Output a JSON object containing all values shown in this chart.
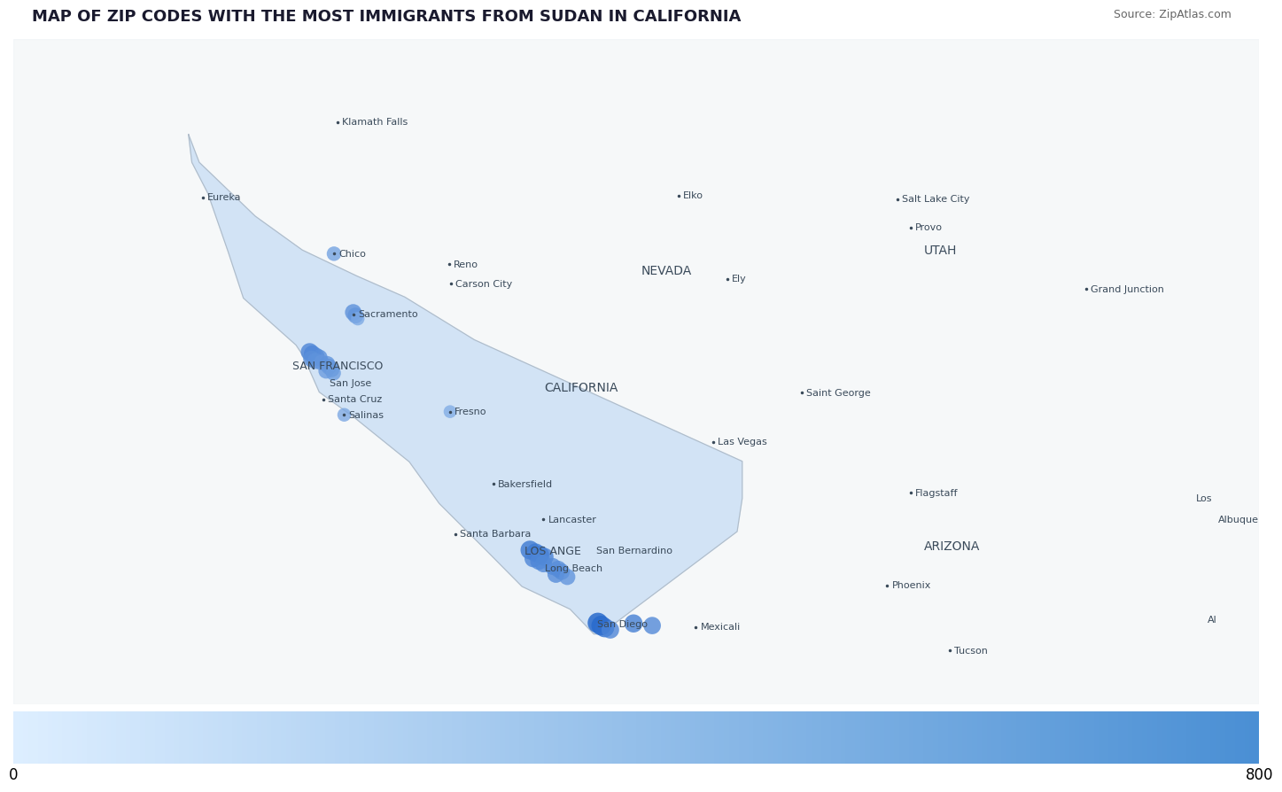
{
  "title": "MAP OF ZIP CODES WITH THE MOST IMMIGRANTS FROM SUDAN IN CALIFORNIA",
  "source_text": "Source: ZipAtlas.com",
  "title_fontsize": 13,
  "colorbar_min": 0,
  "colorbar_max": 800,
  "background_color": "#cbcfd6",
  "land_color": "#eef2f5",
  "california_color": "#cce0f5",
  "border_color": "#b0bcc8",
  "state_line_color": "#c0cdd8",
  "dot_color_light": "#a0c4ee",
  "dot_color_dark": "#1a5fc8",
  "colorbar_colors": [
    "#ddeeff",
    "#4a8fd4"
  ],
  "fig_extent": [
    -127.5,
    -105.5,
    31.2,
    43.8
  ],
  "cities": [
    {
      "name": "Klamath Falls",
      "lon": -121.78,
      "lat": 42.22,
      "dot": true,
      "fontsize": 8,
      "bold": false
    },
    {
      "name": "Eureka",
      "lon": -124.16,
      "lat": 40.8,
      "dot": true,
      "fontsize": 8,
      "bold": false
    },
    {
      "name": "Chico",
      "lon": -121.84,
      "lat": 39.73,
      "dot": true,
      "fontsize": 8,
      "bold": false
    },
    {
      "name": "Reno",
      "lon": -119.81,
      "lat": 39.53,
      "dot": true,
      "fontsize": 8,
      "bold": false
    },
    {
      "name": "Carson City",
      "lon": -119.77,
      "lat": 39.16,
      "dot": true,
      "fontsize": 8,
      "bold": false
    },
    {
      "name": "Elko",
      "lon": -115.76,
      "lat": 40.83,
      "dot": true,
      "fontsize": 8,
      "bold": false
    },
    {
      "name": "Ely",
      "lon": -114.89,
      "lat": 39.25,
      "dot": true,
      "fontsize": 8,
      "bold": false
    },
    {
      "name": "Salt Lake City",
      "lon": -111.89,
      "lat": 40.76,
      "dot": true,
      "fontsize": 8,
      "bold": false
    },
    {
      "name": "Provo",
      "lon": -111.66,
      "lat": 40.23,
      "dot": true,
      "fontsize": 8,
      "bold": false
    },
    {
      "name": "Grand Junction",
      "lon": -108.55,
      "lat": 39.06,
      "dot": true,
      "fontsize": 8,
      "bold": false
    },
    {
      "name": "Sacramento",
      "lon": -121.49,
      "lat": 38.58,
      "dot": true,
      "fontsize": 8,
      "bold": false
    },
    {
      "name": "SAN FRANCISCO",
      "lon": -122.65,
      "lat": 37.6,
      "dot": false,
      "fontsize": 9,
      "bold": false
    },
    {
      "name": "San Jose",
      "lon": -122.0,
      "lat": 37.28,
      "dot": false,
      "fontsize": 8,
      "bold": false
    },
    {
      "name": "Santa Cruz",
      "lon": -122.03,
      "lat": 36.97,
      "dot": true,
      "fontsize": 8,
      "bold": false
    },
    {
      "name": "Salinas",
      "lon": -121.66,
      "lat": 36.68,
      "dot": true,
      "fontsize": 8,
      "bold": false
    },
    {
      "name": "Fresno",
      "lon": -119.79,
      "lat": 36.74,
      "dot": true,
      "fontsize": 8,
      "bold": false
    },
    {
      "name": "CALIFORNIA",
      "lon": -118.2,
      "lat": 37.2,
      "dot": false,
      "fontsize": 10,
      "bold": false
    },
    {
      "name": "NEVADA",
      "lon": -116.5,
      "lat": 39.4,
      "dot": false,
      "fontsize": 10,
      "bold": false
    },
    {
      "name": "UTAH",
      "lon": -111.5,
      "lat": 39.8,
      "dot": false,
      "fontsize": 10,
      "bold": false
    },
    {
      "name": "ARIZONA",
      "lon": -111.5,
      "lat": 34.2,
      "dot": false,
      "fontsize": 10,
      "bold": false
    },
    {
      "name": "Bakersfield",
      "lon": -119.02,
      "lat": 35.37,
      "dot": true,
      "fontsize": 8,
      "bold": false
    },
    {
      "name": "Santa Barbara",
      "lon": -119.7,
      "lat": 34.42,
      "dot": true,
      "fontsize": 8,
      "bold": false
    },
    {
      "name": "Lancaster",
      "lon": -118.14,
      "lat": 34.7,
      "dot": true,
      "fontsize": 8,
      "bold": false
    },
    {
      "name": "LOS ANGE",
      "lon": -118.55,
      "lat": 34.1,
      "dot": false,
      "fontsize": 9,
      "bold": false
    },
    {
      "name": "Long Beach",
      "lon": -118.19,
      "lat": 33.77,
      "dot": false,
      "fontsize": 8,
      "bold": false
    },
    {
      "name": "San Bernardino",
      "lon": -117.29,
      "lat": 34.11,
      "dot": false,
      "fontsize": 8,
      "bold": false
    },
    {
      "name": "Las Vegas",
      "lon": -115.14,
      "lat": 36.17,
      "dot": true,
      "fontsize": 8,
      "bold": false
    },
    {
      "name": "Saint George",
      "lon": -113.58,
      "lat": 37.1,
      "dot": true,
      "fontsize": 8,
      "bold": false
    },
    {
      "name": "Flagstaff",
      "lon": -111.65,
      "lat": 35.2,
      "dot": true,
      "fontsize": 8,
      "bold": false
    },
    {
      "name": "Phoenix",
      "lon": -112.07,
      "lat": 33.45,
      "dot": true,
      "fontsize": 8,
      "bold": false
    },
    {
      "name": "Tucson",
      "lon": -110.97,
      "lat": 32.22,
      "dot": true,
      "fontsize": 8,
      "bold": false
    },
    {
      "name": "Mexicali",
      "lon": -115.45,
      "lat": 32.66,
      "dot": true,
      "fontsize": 8,
      "bold": false
    },
    {
      "name": "San Diego",
      "lon": -117.28,
      "lat": 32.72,
      "dot": false,
      "fontsize": 8,
      "bold": false
    },
    {
      "name": "Los",
      "lon": -106.7,
      "lat": 35.1,
      "dot": false,
      "fontsize": 8,
      "bold": false
    },
    {
      "name": "Albuque",
      "lon": -106.3,
      "lat": 34.7,
      "dot": false,
      "fontsize": 8,
      "bold": false
    },
    {
      "name": "Al",
      "lon": -106.5,
      "lat": 32.8,
      "dot": false,
      "fontsize": 8,
      "bold": false
    }
  ],
  "immigrant_dots": [
    {
      "lon": -121.84,
      "lat": 39.73,
      "value": 280
    },
    {
      "lon": -121.5,
      "lat": 38.62,
      "value": 420
    },
    {
      "lon": -121.46,
      "lat": 38.56,
      "value": 370
    },
    {
      "lon": -121.42,
      "lat": 38.5,
      "value": 220
    },
    {
      "lon": -122.27,
      "lat": 37.87,
      "value": 520
    },
    {
      "lon": -122.22,
      "lat": 37.83,
      "value": 490
    },
    {
      "lon": -122.16,
      "lat": 37.79,
      "value": 460
    },
    {
      "lon": -122.1,
      "lat": 37.76,
      "value": 430
    },
    {
      "lon": -122.24,
      "lat": 37.74,
      "value": 410
    },
    {
      "lon": -122.17,
      "lat": 37.7,
      "value": 390
    },
    {
      "lon": -122.06,
      "lat": 37.67,
      "value": 360
    },
    {
      "lon": -121.96,
      "lat": 37.64,
      "value": 390
    },
    {
      "lon": -121.93,
      "lat": 37.59,
      "value": 370
    },
    {
      "lon": -121.88,
      "lat": 37.54,
      "value": 350
    },
    {
      "lon": -121.98,
      "lat": 37.51,
      "value": 330
    },
    {
      "lon": -121.85,
      "lat": 37.47,
      "value": 310
    },
    {
      "lon": -121.66,
      "lat": 36.68,
      "value": 230
    },
    {
      "lon": -119.79,
      "lat": 36.74,
      "value": 190
    },
    {
      "lon": -118.38,
      "lat": 34.12,
      "value": 620
    },
    {
      "lon": -118.28,
      "lat": 34.07,
      "value": 590
    },
    {
      "lon": -118.2,
      "lat": 34.03,
      "value": 560
    },
    {
      "lon": -118.12,
      "lat": 33.99,
      "value": 530
    },
    {
      "lon": -118.32,
      "lat": 33.96,
      "value": 510
    },
    {
      "lon": -118.22,
      "lat": 33.91,
      "value": 490
    },
    {
      "lon": -118.14,
      "lat": 33.86,
      "value": 470
    },
    {
      "lon": -117.98,
      "lat": 33.81,
      "value": 450
    },
    {
      "lon": -117.88,
      "lat": 33.76,
      "value": 430
    },
    {
      "lon": -117.82,
      "lat": 33.71,
      "value": 410
    },
    {
      "lon": -117.92,
      "lat": 33.66,
      "value": 460
    },
    {
      "lon": -117.72,
      "lat": 33.61,
      "value": 390
    },
    {
      "lon": -117.18,
      "lat": 32.74,
      "value": 800
    },
    {
      "lon": -117.12,
      "lat": 32.69,
      "value": 720
    },
    {
      "lon": -117.06,
      "lat": 32.65,
      "value": 670
    },
    {
      "lon": -116.96,
      "lat": 32.61,
      "value": 510
    },
    {
      "lon": -116.55,
      "lat": 32.73,
      "value": 560
    },
    {
      "lon": -116.22,
      "lat": 32.69,
      "value": 490
    }
  ]
}
